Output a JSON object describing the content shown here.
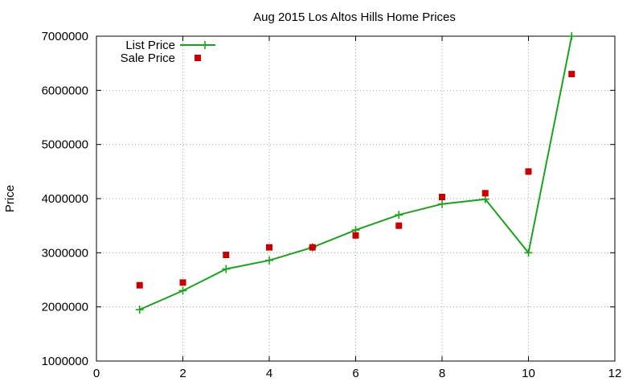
{
  "chart_data": {
    "type": "line",
    "title": "Aug 2015 Los Altos Hills Home Prices",
    "xlabel": "",
    "ylabel": "Price",
    "xlim": [
      0,
      12
    ],
    "ylim": [
      1000000,
      7000000
    ],
    "xticks": [
      0,
      2,
      4,
      6,
      8,
      10,
      12
    ],
    "yticks": [
      1000000,
      2000000,
      3000000,
      4000000,
      5000000,
      6000000,
      7000000
    ],
    "grid": true,
    "legend_position": "top-left",
    "series": [
      {
        "name": "List Price",
        "style": "line-with-plus-markers",
        "color": "#1aa31a",
        "x": [
          1,
          2,
          3,
          4,
          5,
          6,
          7,
          8,
          9,
          10,
          11
        ],
        "y": [
          1950000,
          2300000,
          2700000,
          2860000,
          3100000,
          3420000,
          3700000,
          3900000,
          3990000,
          3000000,
          7000000
        ]
      },
      {
        "name": "Sale Price",
        "style": "square-markers",
        "color": "#c80000",
        "x": [
          1,
          2,
          3,
          4,
          5,
          6,
          7,
          8,
          9,
          10,
          11
        ],
        "y": [
          2400000,
          2450000,
          2960000,
          3100000,
          3100000,
          3320000,
          3500000,
          4030000,
          4100000,
          4500000,
          6300000
        ]
      }
    ]
  }
}
